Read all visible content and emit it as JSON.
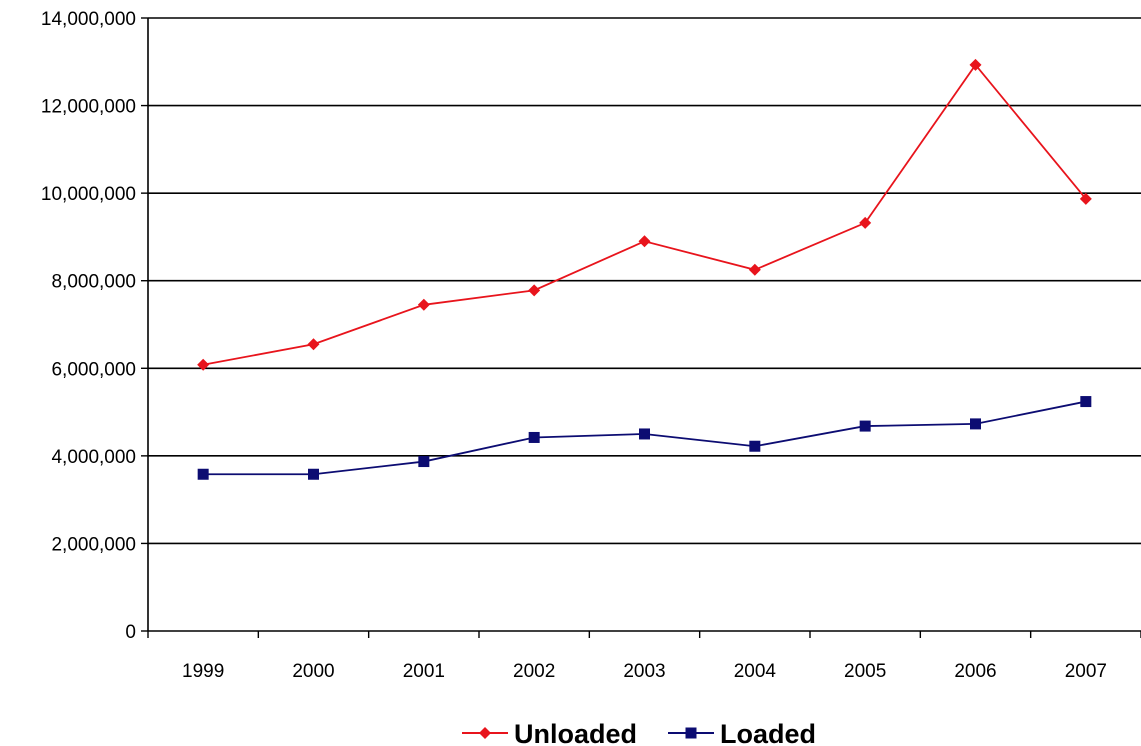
{
  "chart_data": {
    "type": "line",
    "categories": [
      "1999",
      "2000",
      "2001",
      "2002",
      "2003",
      "2004",
      "2005",
      "2006",
      "2007"
    ],
    "series": [
      {
        "name": "Unloaded",
        "color": "#e8141c",
        "marker": "diamond",
        "values": [
          6080000,
          6550000,
          7450000,
          7780000,
          8900000,
          8250000,
          9320000,
          12930000,
          9870000
        ]
      },
      {
        "name": "Loaded",
        "color": "#0c0c72",
        "marker": "square",
        "values": [
          3580000,
          3580000,
          3870000,
          4420000,
          4500000,
          4220000,
          4680000,
          4730000,
          5240000
        ]
      }
    ],
    "ylim": [
      0,
      14000000
    ],
    "yticks": [
      0,
      2000000,
      4000000,
      6000000,
      8000000,
      10000000,
      12000000,
      14000000
    ],
    "ytick_labels": [
      "0",
      "2,000,000",
      "4,000,000",
      "6,000,000",
      "8,000,000",
      "10,000,000",
      "12,000,000",
      "14,000,000"
    ],
    "grid": true,
    "legend": "bottom"
  }
}
